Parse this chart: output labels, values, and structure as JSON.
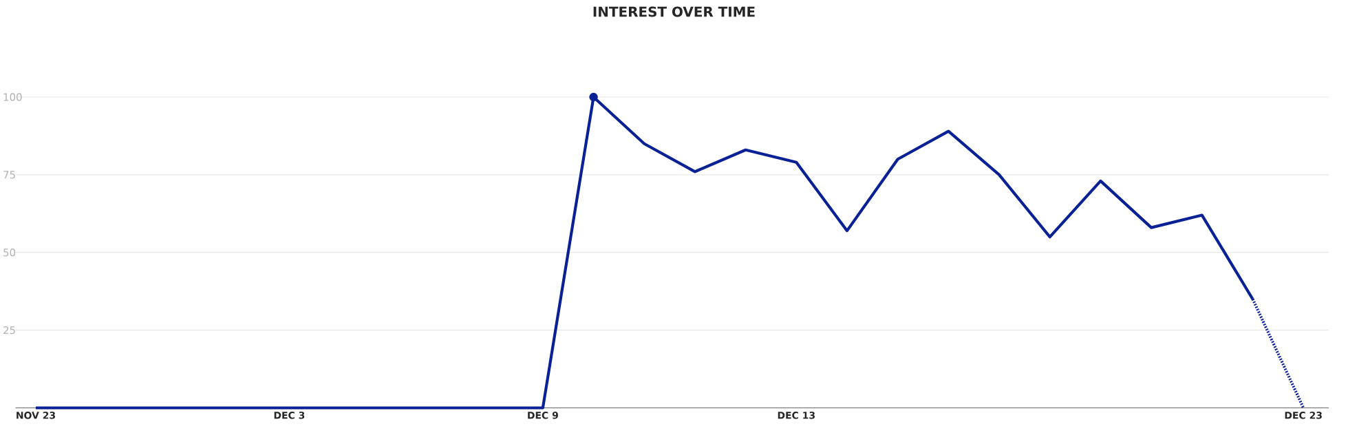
{
  "chart_data": {
    "type": "line",
    "title": "INTEREST OVER TIME",
    "categories": [
      "NOV 23",
      null,
      null,
      null,
      null,
      "DEC 3",
      null,
      null,
      null,
      null,
      "DEC 9",
      null,
      null,
      null,
      null,
      "DEC 13",
      null,
      null,
      null,
      null,
      null,
      null,
      null,
      null,
      null,
      "DEC 23"
    ],
    "ylim": [
      0,
      100
    ],
    "yticks": [
      25,
      50,
      75,
      100
    ],
    "grid": "y",
    "series": [
      {
        "color": "#0a2196",
        "line_style": "solid",
        "values": [
          0,
          0,
          0,
          0,
          0,
          0,
          0,
          0,
          0,
          0,
          0,
          100,
          85,
          76,
          83,
          79,
          57,
          80,
          89,
          75,
          55,
          73,
          58,
          62,
          35,
          null
        ]
      },
      {
        "color": "#0a2196",
        "line_style": "dotted",
        "values": [
          null,
          null,
          null,
          null,
          null,
          null,
          null,
          null,
          null,
          null,
          null,
          null,
          null,
          null,
          null,
          null,
          null,
          null,
          null,
          null,
          null,
          null,
          null,
          null,
          35,
          0
        ]
      },
      {
        "type": "scatter",
        "color": "#0a2196",
        "marker": "circle",
        "values": [
          null,
          null,
          null,
          null,
          null,
          null,
          null,
          null,
          null,
          null,
          null,
          100,
          null,
          null,
          null,
          null,
          null,
          null,
          null,
          null,
          null,
          null,
          null,
          null,
          null,
          null
        ]
      }
    ]
  }
}
